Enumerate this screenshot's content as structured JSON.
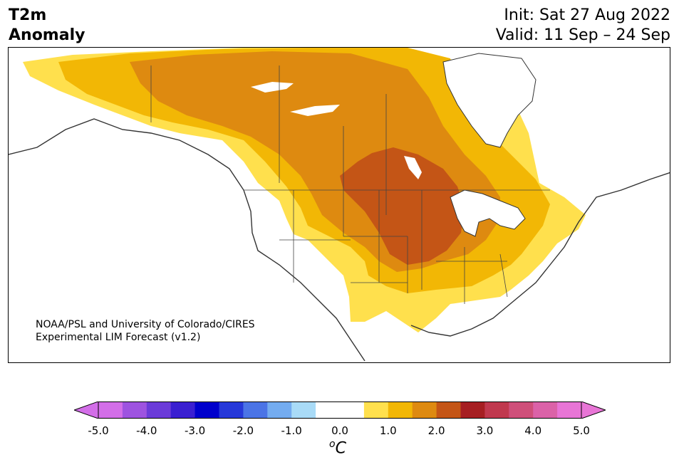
{
  "header": {
    "title_line1": "T2m",
    "title_line2": "Anomaly",
    "init": "Init: Sat 27 Aug 2022",
    "valid": "Valid: 11 Sep – 24 Sep"
  },
  "credit": {
    "line1": "NOAA/PSL and University of Colorado/CIRES",
    "line2": "Experimental LIM Forecast (v1.2)"
  },
  "colorbar": {
    "tick_labels": [
      "-5.0",
      "-4.0",
      "-3.0",
      "-2.0",
      "-1.0",
      "0.0",
      "1.0",
      "2.0",
      "3.0",
      "4.0",
      "5.0"
    ],
    "unit_base": "C",
    "unit_sup": "o",
    "colors": [
      "#d36ee8",
      "#9e53e0",
      "#6b3bd9",
      "#3a1fd1",
      "#0000cc",
      "#2638d9",
      "#4b74e6",
      "#74acf0",
      "#a9dbf7",
      "#ffffff",
      "#ffffff",
      "#ffe04d",
      "#f2b705",
      "#de8a10",
      "#c45516",
      "#a61e22",
      "#c0384e",
      "#cf4f7a",
      "#db62a8",
      "#e875d6"
    ],
    "extend_low_color": "#d36ee8",
    "extend_high_color": "#e875d6"
  },
  "map": {
    "anomaly_colors": {
      "level_0_5": "#ffe04d",
      "level_1_0": "#f2b705",
      "level_1_5": "#de8a10",
      "level_2_0": "#c45516",
      "water": "#ffffff",
      "coast": "#333333"
    }
  }
}
